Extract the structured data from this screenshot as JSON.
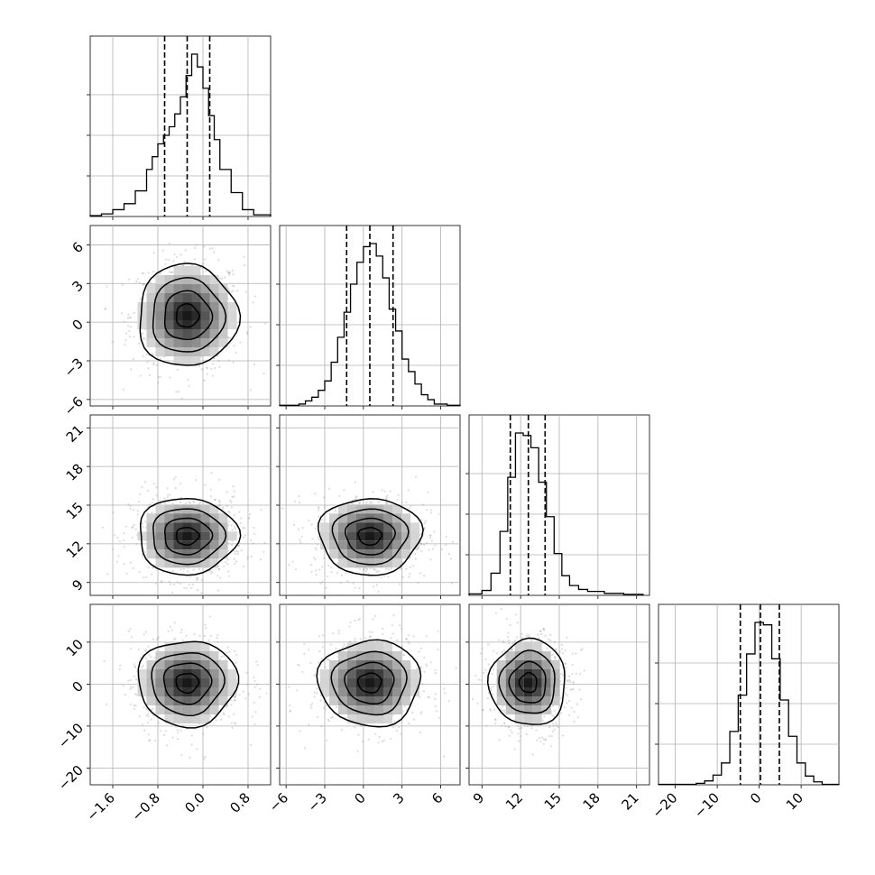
{
  "chart_data": {
    "type": "corner",
    "title": "",
    "n_params": 4,
    "grid": true,
    "params": [
      {
        "label": "",
        "range": [
          -2.0,
          1.2
        ],
        "ticks": [
          -1.6,
          -0.8,
          0.0,
          0.8
        ],
        "tick_labels": [
          "−1.6",
          "−0.8",
          "0.0",
          "0.8"
        ],
        "quantiles": [
          -0.68,
          -0.28,
          0.12
        ],
        "histogram": {
          "edges": [
            -2.0,
            -1.8,
            -1.6,
            -1.4,
            -1.2,
            -1.0,
            -0.9,
            -0.8,
            -0.7,
            -0.6,
            -0.5,
            -0.4,
            -0.3,
            -0.2,
            -0.1,
            0.0,
            0.1,
            0.2,
            0.3,
            0.5,
            0.7,
            0.9,
            1.2
          ],
          "counts": [
            1,
            3,
            8,
            15,
            30,
            55,
            70,
            85,
            95,
            105,
            120,
            140,
            165,
            190,
            175,
            150,
            118,
            90,
            55,
            28,
            8,
            2
          ]
        }
      },
      {
        "label": "",
        "range": [
          -6.5,
          7.5
        ],
        "ticks": [
          -6,
          -3,
          0,
          3,
          6
        ],
        "tick_labels": [
          "−6",
          "−3",
          "0",
          "3",
          "6"
        ],
        "quantiles": [
          -1.3,
          0.5,
          2.3
        ],
        "histogram": {
          "edges": [
            -6.5,
            -5.0,
            -4.5,
            -4.0,
            -3.5,
            -3.0,
            -2.5,
            -2.0,
            -1.5,
            -1.0,
            -0.5,
            0.0,
            0.5,
            1.0,
            1.5,
            2.0,
            2.5,
            3.0,
            3.5,
            4.0,
            4.5,
            5.0,
            5.5,
            6.5,
            7.5
          ],
          "counts": [
            1,
            3,
            8,
            14,
            25,
            40,
            70,
            110,
            150,
            195,
            230,
            255,
            260,
            240,
            205,
            155,
            120,
            75,
            55,
            35,
            18,
            10,
            3,
            1
          ]
        }
      },
      {
        "label": "",
        "range": [
          8.0,
          22.0
        ],
        "ticks": [
          9,
          12,
          15,
          18,
          21
        ],
        "tick_labels": [
          "9",
          "12",
          "15",
          "18",
          "21"
        ],
        "quantiles": [
          11.2,
          12.6,
          13.9
        ],
        "histogram": {
          "edges": [
            8.0,
            9.0,
            9.7,
            10.4,
            11.0,
            11.6,
            12.2,
            12.8,
            13.4,
            14.0,
            14.6,
            15.2,
            15.8,
            16.5,
            17.2,
            18.5,
            20.0,
            21.5
          ],
          "counts": [
            3,
            10,
            45,
            130,
            240,
            330,
            325,
            300,
            230,
            160,
            85,
            40,
            20,
            12,
            8,
            4,
            2
          ]
        }
      },
      {
        "label": "",
        "range": [
          -24,
          19
        ],
        "ticks": [
          -20,
          -10,
          0,
          10
        ],
        "tick_labels": [
          "−20",
          "−10",
          "0",
          "10"
        ],
        "quantiles": [
          -4.5,
          0.3,
          4.8
        ],
        "histogram": {
          "edges": [
            -24,
            -15,
            -13,
            -11,
            -9,
            -7,
            -5,
            -3,
            -1,
            1,
            3,
            5,
            7,
            9,
            11,
            13,
            15,
            19
          ],
          "counts": [
            1,
            3,
            8,
            20,
            45,
            110,
            185,
            270,
            335,
            330,
            260,
            175,
            100,
            45,
            18,
            6,
            1
          ]
        }
      }
    ]
  }
}
